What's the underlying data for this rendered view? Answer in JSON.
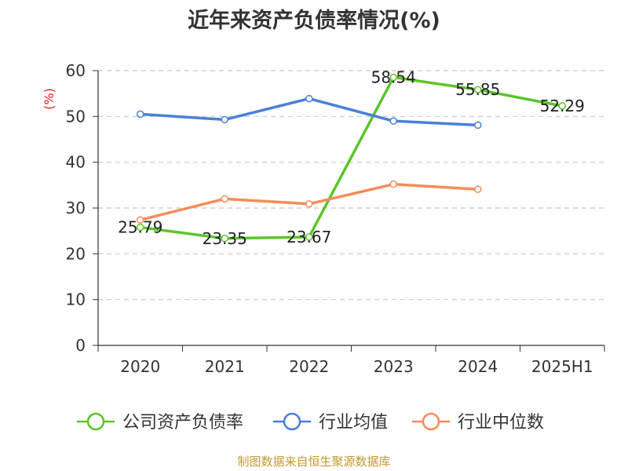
{
  "chart_data": {
    "type": "line",
    "title": "近年来资产负债率情况(%)",
    "ylabel": "(%)",
    "xlabel": "",
    "categories": [
      "2020",
      "2021",
      "2022",
      "2023",
      "2024",
      "2025H1"
    ],
    "ylim": [
      0,
      60
    ],
    "yticks": [
      0,
      10,
      20,
      30,
      40,
      50,
      60
    ],
    "grid": true,
    "legend_position": "bottom",
    "series": [
      {
        "name": "公司资产负债率",
        "color": "#5cc52a",
        "values": [
          25.79,
          23.35,
          23.67,
          58.54,
          55.85,
          52.29
        ],
        "labels": [
          "25.79",
          "23.35",
          "23.67",
          "58.54",
          "55.85",
          "52.29"
        ]
      },
      {
        "name": "行业均值",
        "color": "#4a80d8",
        "values": [
          50.5,
          49.3,
          53.9,
          49.0,
          48.1,
          null
        ]
      },
      {
        "name": "行业中位数",
        "color": "#f58c5a",
        "values": [
          27.4,
          32.0,
          30.9,
          35.2,
          34.1,
          null
        ]
      }
    ]
  },
  "footer": {
    "source": "制图数据来自恒生聚源数据库"
  }
}
